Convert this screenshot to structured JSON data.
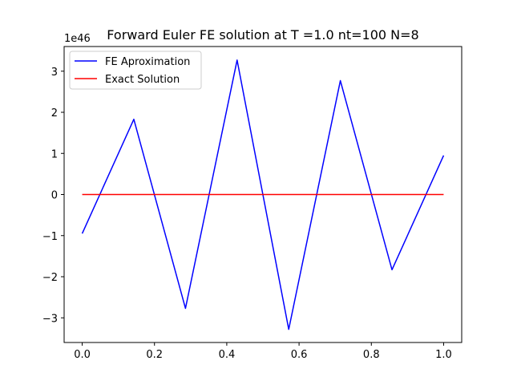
{
  "chart_data": {
    "type": "line",
    "title": "Forward Euler FE solution at T =1.0 nt=100 N=8",
    "xlabel": "",
    "ylabel": "",
    "y_offset_label": "1e46",
    "xlim": [
      -0.05,
      1.05
    ],
    "ylim": [
      -3.6,
      3.6
    ],
    "x_ticks": [
      0.0,
      0.2,
      0.4,
      0.6,
      0.8,
      1.0
    ],
    "x_tick_labels": [
      "0.0",
      "0.2",
      "0.4",
      "0.6",
      "0.8",
      "1.0"
    ],
    "y_ticks": [
      -3,
      -2,
      -1,
      0,
      1,
      2,
      3
    ],
    "y_tick_labels": [
      "−3",
      "−2",
      "−1",
      "0",
      "1",
      "2",
      "3"
    ],
    "grid": false,
    "legend_position": "upper-left",
    "series": [
      {
        "name": "FE Aproximation",
        "color": "#0000ff",
        "x": [
          0.0,
          0.142857,
          0.285714,
          0.428571,
          0.571429,
          0.714286,
          0.857143,
          1.0
        ],
        "y": [
          -0.95,
          1.83,
          -2.77,
          3.27,
          -3.28,
          2.77,
          -1.83,
          0.95
        ]
      },
      {
        "name": "Exact Solution",
        "color": "#ff0000",
        "x": [
          0.0,
          0.142857,
          0.285714,
          0.428571,
          0.571429,
          0.714286,
          0.857143,
          1.0
        ],
        "y": [
          0,
          0,
          0,
          0,
          0,
          0,
          0,
          0
        ]
      }
    ]
  }
}
